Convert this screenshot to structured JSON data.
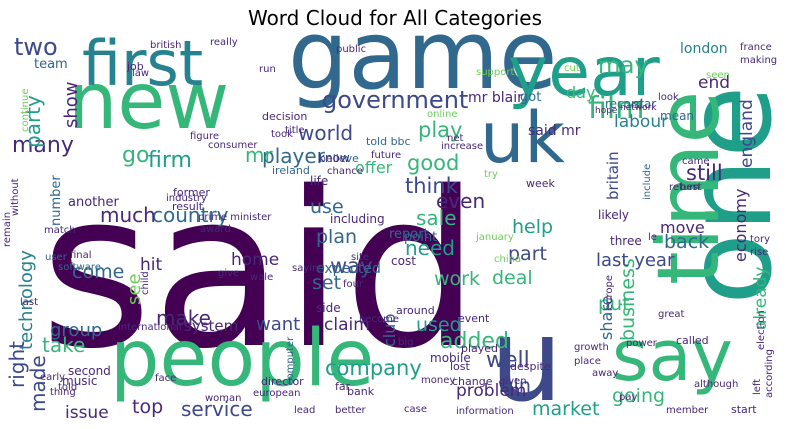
{
  "chart_data": {
    "type": "wordcloud",
    "title": "Word Cloud for All Categories",
    "palette": [
      "#440154",
      "#482878",
      "#3e4989",
      "#31688e",
      "#26828e",
      "#1f9e89",
      "#35b779",
      "#6ece58",
      "#b5de2b",
      "#fde725"
    ],
    "words": [
      {
        "text": "said"
      },
      {
        "text": "game"
      },
      {
        "text": "people"
      },
      {
        "text": "one"
      },
      {
        "text": "year"
      },
      {
        "text": "new"
      },
      {
        "text": "first"
      },
      {
        "text": "time"
      },
      {
        "text": "uk"
      },
      {
        "text": "u"
      },
      {
        "text": "say"
      },
      {
        "text": "government"
      },
      {
        "text": "film"
      },
      {
        "text": "two"
      },
      {
        "text": "world"
      },
      {
        "text": "player"
      },
      {
        "text": "country"
      },
      {
        "text": "firm"
      },
      {
        "text": "go"
      },
      {
        "text": "many"
      },
      {
        "text": "party"
      },
      {
        "text": "technology"
      },
      {
        "text": "much"
      },
      {
        "text": "made"
      },
      {
        "text": "good"
      },
      {
        "text": "show"
      },
      {
        "text": "may"
      },
      {
        "text": "mr"
      },
      {
        "text": "play"
      },
      {
        "text": "think"
      },
      {
        "text": "still"
      },
      {
        "text": "even"
      },
      {
        "text": "sale"
      },
      {
        "text": "business"
      },
      {
        "text": "service"
      },
      {
        "text": "company"
      },
      {
        "text": "added"
      },
      {
        "text": "well"
      },
      {
        "text": "market"
      },
      {
        "text": "going"
      },
      {
        "text": "make"
      },
      {
        "text": "take"
      },
      {
        "text": "top"
      },
      {
        "text": "right"
      },
      {
        "text": "need"
      },
      {
        "text": "help"
      },
      {
        "text": "part"
      },
      {
        "text": "use"
      },
      {
        "text": "set"
      },
      {
        "text": "plan"
      },
      {
        "text": "way"
      },
      {
        "text": "work"
      },
      {
        "text": "put"
      },
      {
        "text": "back"
      },
      {
        "text": "already"
      },
      {
        "text": "group"
      },
      {
        "text": "come"
      },
      {
        "text": "see"
      },
      {
        "text": "want"
      },
      {
        "text": "used"
      },
      {
        "text": "win"
      },
      {
        "text": "deal"
      },
      {
        "text": "england"
      },
      {
        "text": "labour"
      },
      {
        "text": "end"
      },
      {
        "text": "london"
      },
      {
        "text": "last year"
      },
      {
        "text": "economy"
      },
      {
        "text": "hit"
      },
      {
        "text": "home"
      },
      {
        "text": "system"
      },
      {
        "text": "claim"
      },
      {
        "text": "problem"
      },
      {
        "text": "issue"
      },
      {
        "text": "share"
      },
      {
        "text": "move"
      },
      {
        "text": "britain"
      },
      {
        "text": "day"
      },
      {
        "text": "said mr"
      },
      {
        "text": "mr blair"
      },
      {
        "text": "number"
      },
      {
        "text": "expected"
      },
      {
        "text": "offer"
      },
      {
        "text": "club"
      },
      {
        "text": "team"
      },
      {
        "text": "told bbc"
      },
      {
        "text": "another"
      },
      {
        "text": "three"
      },
      {
        "text": "music"
      },
      {
        "text": "second"
      },
      {
        "text": "decision"
      },
      {
        "text": "believe"
      },
      {
        "text": "former"
      },
      {
        "text": "result"
      },
      {
        "text": "job"
      },
      {
        "text": "british"
      },
      {
        "text": "really"
      },
      {
        "text": "public"
      },
      {
        "text": "france"
      },
      {
        "text": "making"
      },
      {
        "text": "got"
      },
      {
        "text": "record"
      },
      {
        "text": "star"
      },
      {
        "text": "look"
      },
      {
        "text": "mean"
      },
      {
        "text": "network"
      },
      {
        "text": "hope"
      },
      {
        "text": "net"
      },
      {
        "text": "including"
      },
      {
        "text": "cost"
      },
      {
        "text": "report"
      },
      {
        "text": "point"
      },
      {
        "text": "life"
      },
      {
        "text": "know"
      },
      {
        "text": "side"
      },
      {
        "text": "mobile"
      },
      {
        "text": "event"
      },
      {
        "text": "played"
      },
      {
        "text": "around"
      },
      {
        "text": "lost"
      },
      {
        "text": "despite"
      },
      {
        "text": "bank"
      },
      {
        "text": "money"
      },
      {
        "text": "change"
      },
      {
        "text": "given"
      },
      {
        "text": "far"
      },
      {
        "text": "director"
      },
      {
        "text": "european"
      },
      {
        "text": "pay"
      },
      {
        "text": "start"
      },
      {
        "text": "member"
      },
      {
        "text": "case"
      },
      {
        "text": "information"
      },
      {
        "text": "better"
      },
      {
        "text": "lead"
      },
      {
        "text": "woman"
      },
      {
        "text": "computer"
      },
      {
        "text": "face"
      },
      {
        "text": "thing"
      },
      {
        "text": "told"
      },
      {
        "text": "early"
      },
      {
        "text": "last"
      },
      {
        "text": "user"
      },
      {
        "text": "final"
      },
      {
        "text": "software"
      },
      {
        "text": "give"
      },
      {
        "text": "award"
      },
      {
        "text": "child"
      },
      {
        "text": "industry"
      },
      {
        "text": "match"
      },
      {
        "text": "prime minister"
      },
      {
        "text": "saying"
      },
      {
        "text": "four"
      },
      {
        "text": "site"
      },
      {
        "text": "become"
      },
      {
        "text": "big"
      },
      {
        "text": "ireland"
      },
      {
        "text": "chance"
      },
      {
        "text": "try"
      },
      {
        "text": "future"
      },
      {
        "text": "increase"
      },
      {
        "text": "consumer"
      },
      {
        "text": "figure"
      },
      {
        "text": "title"
      },
      {
        "text": "took"
      },
      {
        "text": "law"
      },
      {
        "text": "run"
      },
      {
        "text": "support"
      },
      {
        "text": "online"
      },
      {
        "text": "cut"
      },
      {
        "text": "seen"
      },
      {
        "text": "return"
      },
      {
        "text": "best"
      },
      {
        "text": "came"
      },
      {
        "text": "tory"
      },
      {
        "text": "rise"
      },
      {
        "text": "week"
      },
      {
        "text": "likely"
      },
      {
        "text": "le"
      },
      {
        "text": "include"
      },
      {
        "text": "growth"
      },
      {
        "text": "place"
      },
      {
        "text": "away"
      },
      {
        "text": "power"
      },
      {
        "text": "called"
      },
      {
        "text": "great"
      },
      {
        "text": "election"
      },
      {
        "text": "according"
      },
      {
        "text": "left"
      },
      {
        "text": "although"
      },
      {
        "text": "europe"
      },
      {
        "text": "international"
      },
      {
        "text": "continue"
      },
      {
        "text": "without"
      },
      {
        "text": "remain"
      },
      {
        "text": "china"
      },
      {
        "text": "january"
      },
      {
        "text": "wale"
      }
    ]
  }
}
